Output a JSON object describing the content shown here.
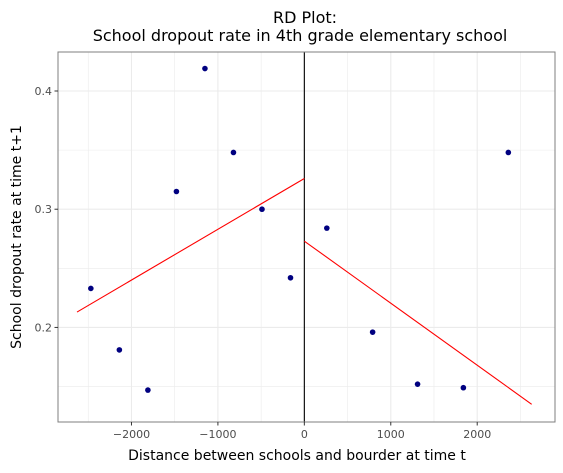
{
  "chart_data": {
    "type": "scatter",
    "title_line1": "RD Plot:",
    "title_line2": "School dropout rate in 4th grade elementary school",
    "xlabel": "Distance between schools and bourder at time t",
    "ylabel": "School dropout rate at time t+1",
    "xlim": [
      -2850,
      2900
    ],
    "ylim": [
      0.12,
      0.433
    ],
    "x_ticks": [
      -2000,
      -1000,
      0,
      1000,
      2000
    ],
    "x_tick_labels": [
      "−2000",
      "−1000",
      "0",
      "1000",
      "2000"
    ],
    "y_ticks": [
      0.2,
      0.3,
      0.4
    ],
    "y_tick_labels": [
      "0.2",
      "0.3",
      "0.4"
    ],
    "grid": true,
    "cutoff": 0,
    "points": [
      {
        "x": -2470,
        "y": 0.233
      },
      {
        "x": -2140,
        "y": 0.181
      },
      {
        "x": -1810,
        "y": 0.147
      },
      {
        "x": -1480,
        "y": 0.315
      },
      {
        "x": -1150,
        "y": 0.419
      },
      {
        "x": -820,
        "y": 0.348
      },
      {
        "x": -490,
        "y": 0.3
      },
      {
        "x": -160,
        "y": 0.242
      },
      {
        "x": 260,
        "y": 0.284
      },
      {
        "x": 790,
        "y": 0.196
      },
      {
        "x": 1310,
        "y": 0.152
      },
      {
        "x": 1840,
        "y": 0.149
      },
      {
        "x": 2360,
        "y": 0.348
      }
    ],
    "fit_lines": [
      {
        "x": [
          -2630,
          0
        ],
        "y": [
          0.213,
          0.326
        ]
      },
      {
        "x": [
          0,
          2630
        ],
        "y": [
          0.273,
          0.135
        ]
      }
    ],
    "colors": {
      "points": "#000080",
      "fit": "#ff0000",
      "cutoff": "#000000",
      "grid": "#ebebeb",
      "panel_border": "#7f7f7f"
    }
  }
}
